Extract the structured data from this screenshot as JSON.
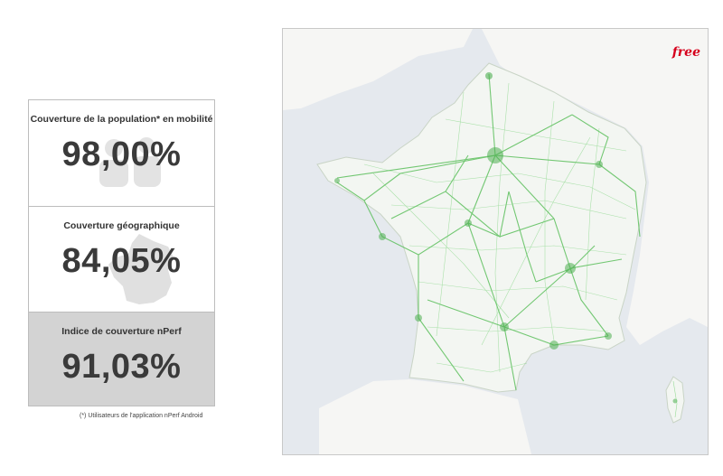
{
  "stats": {
    "population": {
      "title": "Couverture de la population* en mobilité",
      "value": "98,00%"
    },
    "geographic": {
      "title": "Couverture géographique",
      "value": "84,05%"
    },
    "nperf_index": {
      "title": "Indice de couverture nPerf",
      "value": "91,03%"
    }
  },
  "footnote": "(*) Utilisateurs de l'application nPerf Android",
  "map": {
    "operator_logo": "free",
    "colors": {
      "coverage": "#5cbf5c",
      "land": "#f6f6f4",
      "water": "#e5e9ee",
      "logo": "#d6001c"
    }
  }
}
